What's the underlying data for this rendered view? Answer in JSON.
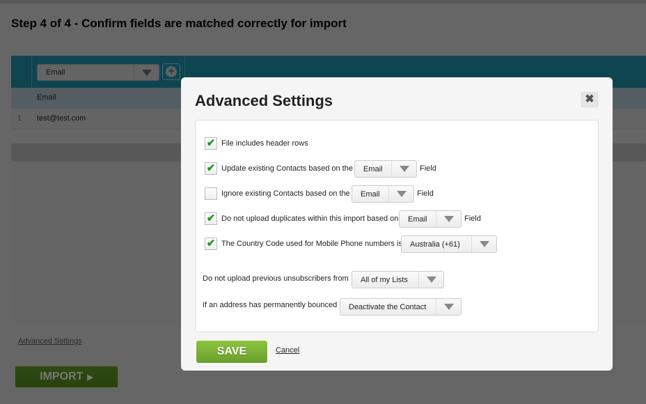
{
  "page": {
    "title": "Step 4 of 4 - Confirm fields are matched correctly for import",
    "advanced_link": "Advanced Settings",
    "import_label": "IMPORT"
  },
  "table": {
    "column_select": "Email",
    "add_column_icon": "plus-circle-icon",
    "header": "Email",
    "rows": [
      {
        "num": "1",
        "email": "test@test.com"
      }
    ]
  },
  "modal": {
    "title": "Advanced Settings",
    "close_icon": "close-x-icon",
    "options": [
      {
        "label": "File includes header rows",
        "checked": true
      },
      {
        "label": "Update existing Contacts based on the",
        "checked": true,
        "select": "Email",
        "suffix": "Field"
      },
      {
        "label": "Ignore existing Contacts based on the",
        "checked": false,
        "select": "Email",
        "suffix": "Field"
      },
      {
        "label": "Do not upload duplicates within this import based on",
        "checked": true,
        "select": "Email",
        "suffix": "Field"
      },
      {
        "label": "The Country Code used for Mobile Phone numbers is",
        "checked": true,
        "select": "Australia (+61)"
      }
    ],
    "unsub_label": "Do not upload previous unsubscribers from",
    "unsub_select": "All of my Lists",
    "bounce_label": "If an address has permanently bounced",
    "bounce_select": "Deactivate the Contact",
    "save_label": "SAVE",
    "cancel_label": "Cancel"
  },
  "colors": {
    "header_teal": "#26adc7",
    "save_green": "#7ab335",
    "check_green": "#1a9a1a"
  }
}
